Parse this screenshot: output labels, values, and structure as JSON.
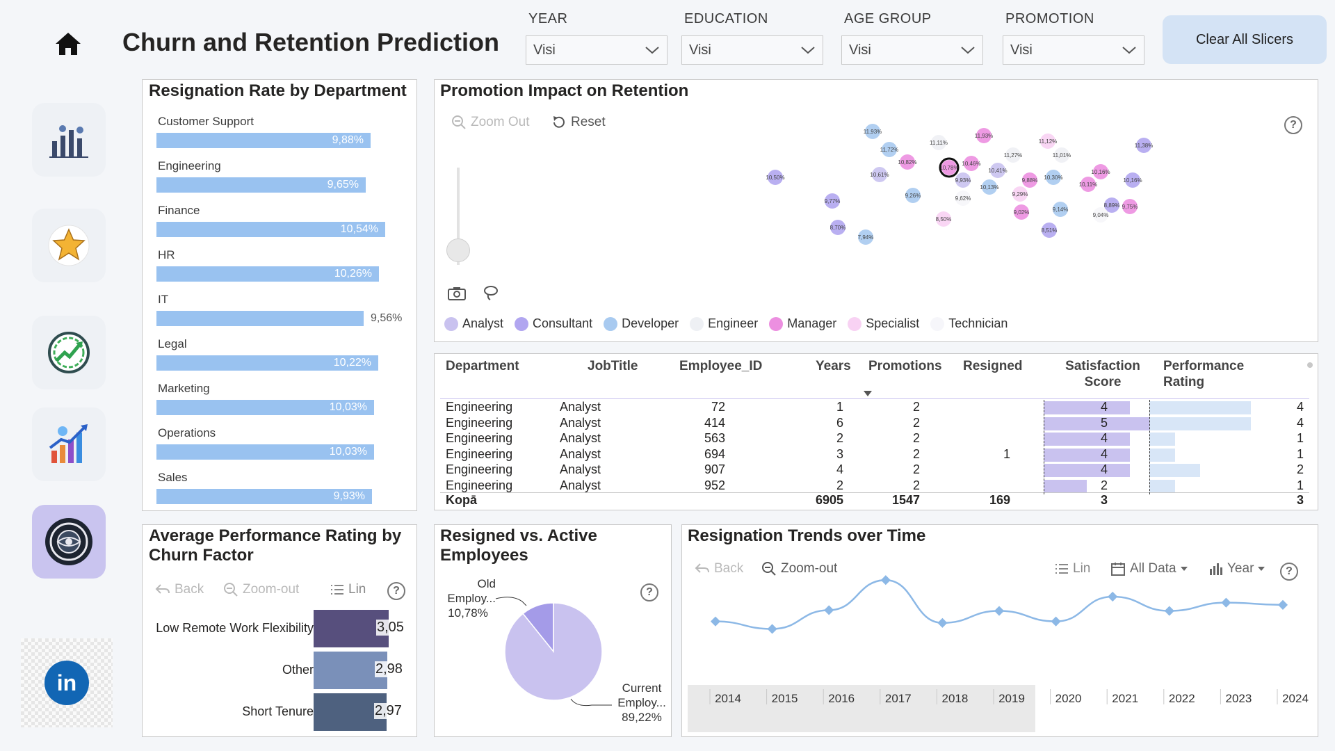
{
  "header": {
    "title": "Churn and Retention Prediction",
    "clear_button": "Clear All Slicers",
    "slicers": [
      {
        "label": "YEAR",
        "value": "Visi"
      },
      {
        "label": "EDUCATION",
        "value": "Visi"
      },
      {
        "label": "AGE GROUP",
        "value": "Visi"
      },
      {
        "label": "PROMOTION",
        "value": "Visi"
      }
    ]
  },
  "sidebar": {
    "items": [
      {
        "icon": "team-analytics-icon"
      },
      {
        "icon": "star-icon"
      },
      {
        "icon": "gauge-growth-icon"
      },
      {
        "icon": "growth-chart-icon"
      },
      {
        "icon": "globe-settings-icon",
        "active": true
      }
    ],
    "linkedin": "in"
  },
  "colors": {
    "accent": "#99c2f0",
    "active_tile": "#c9c4ef",
    "perf_bars": [
      "#574f7d",
      "#7a90b9",
      "#4e617f"
    ]
  },
  "department_panel": {
    "title": "Resignation Rate by Department",
    "chart_data": {
      "type": "bar",
      "orientation": "horizontal",
      "categories": [
        "Customer Support",
        "Engineering",
        "Finance",
        "HR",
        "IT",
        "Legal",
        "Marketing",
        "Operations",
        "Sales"
      ],
      "values": [
        9.88,
        9.65,
        10.54,
        10.26,
        9.56,
        10.22,
        10.03,
        10.03,
        9.93
      ],
      "labels": [
        "9,88%",
        "9,65%",
        "10,54%",
        "10,26%",
        "9,56%",
        "10,22%",
        "10,03%",
        "10,03%",
        "9,93%"
      ]
    }
  },
  "promo_panel": {
    "title": "Promotion Impact on Retention",
    "zoom_out": "Zoom Out",
    "reset": "Reset",
    "help": "?",
    "legend": [
      {
        "name": "Analyst",
        "color": "#c9c2ef"
      },
      {
        "name": "Consultant",
        "color": "#b1a6f0"
      },
      {
        "name": "Developer",
        "color": "#a8caf0"
      },
      {
        "name": "Engineer",
        "color": "#eef0f4"
      },
      {
        "name": "Manager",
        "color": "#ec8fe0"
      },
      {
        "name": "Specialist",
        "color": "#f8d2f3"
      },
      {
        "name": "Technician",
        "color": "#f6f6fa"
      }
    ],
    "chart_data": {
      "type": "scatter",
      "points": [
        {
          "label": "11,93%",
          "color": "#a8caf0"
        },
        {
          "label": "11,72%",
          "color": "#a8caf0"
        },
        {
          "label": "11,11%",
          "color": "#eef0f4"
        },
        {
          "label": "11,93%",
          "color": "#ec8fe0"
        },
        {
          "label": "11,12%",
          "color": "#f8d2f3"
        },
        {
          "label": "11,38%",
          "color": "#b1a6f0"
        },
        {
          "label": "11,27%",
          "color": "#eef0f4"
        },
        {
          "label": "11,01%",
          "color": "#eef0f4"
        },
        {
          "label": "10,50%",
          "color": "#b1a6f0"
        },
        {
          "label": "10,82%",
          "color": "#ec8fe0"
        },
        {
          "label": "10,78%",
          "color": "#ec8fe0"
        },
        {
          "label": "10,61%",
          "color": "#c9c2ef"
        },
        {
          "label": "10,46%",
          "color": "#ec8fe0"
        },
        {
          "label": "10,41%",
          "color": "#c9c2ef"
        },
        {
          "label": "10,30%",
          "color": "#a8caf0"
        },
        {
          "label": "10,16%",
          "color": "#ec8fe0"
        },
        {
          "label": "10,16%",
          "color": "#b1a6f0"
        },
        {
          "label": "9,93%",
          "color": "#c9c2ef"
        },
        {
          "label": "9,88%",
          "color": "#ec8fe0"
        },
        {
          "label": "10,13%",
          "color": "#a8caf0"
        },
        {
          "label": "10,11%",
          "color": "#ec8fe0"
        },
        {
          "label": "9,26%",
          "color": "#a8caf0"
        },
        {
          "label": "9,62%",
          "color": "#f6f6fa"
        },
        {
          "label": "9,29%",
          "color": "#f8d2f3"
        },
        {
          "label": "9,77%",
          "color": "#b1a6f0"
        },
        {
          "label": "9,02%",
          "color": "#ec8fe0"
        },
        {
          "label": "9,14%",
          "color": "#a8caf0"
        },
        {
          "label": "8,89%",
          "color": "#b1a6f0"
        },
        {
          "label": "9,75%",
          "color": "#ec8fe0"
        },
        {
          "label": "9,04%",
          "color": "#f6f6fa"
        },
        {
          "label": "8,50%",
          "color": "#f8d2f3"
        },
        {
          "label": "8,51%",
          "color": "#b1a6f0"
        },
        {
          "label": "8,70%",
          "color": "#b1a6f0"
        },
        {
          "label": "7,94%",
          "color": "#a8caf0"
        }
      ]
    }
  },
  "table": {
    "headers": [
      "Department",
      "JobTitle",
      "Employee_ID",
      "Years",
      "Promotions",
      "Resigned",
      "Satisfaction Score",
      "Performance Rating"
    ],
    "rows": [
      {
        "dept": "Engineering",
        "job": "Analyst",
        "id": "72",
        "years": "1",
        "promotions": "2",
        "resigned": "",
        "satisfaction": "4",
        "performance": "4",
        "sat_level": 0.8,
        "perf_level": 1.0
      },
      {
        "dept": "Engineering",
        "job": "Analyst",
        "id": "414",
        "years": "6",
        "promotions": "2",
        "resigned": "",
        "satisfaction": "5",
        "performance": "4",
        "sat_level": 1.0,
        "perf_level": 1.0
      },
      {
        "dept": "Engineering",
        "job": "Analyst",
        "id": "563",
        "years": "2",
        "promotions": "2",
        "resigned": "",
        "satisfaction": "4",
        "performance": "1",
        "sat_level": 0.8,
        "perf_level": 0.25
      },
      {
        "dept": "Engineering",
        "job": "Analyst",
        "id": "694",
        "years": "3",
        "promotions": "2",
        "resigned": "1",
        "satisfaction": "4",
        "performance": "1",
        "sat_level": 0.8,
        "perf_level": 0.25
      },
      {
        "dept": "Engineering",
        "job": "Analyst",
        "id": "907",
        "years": "4",
        "promotions": "2",
        "resigned": "",
        "satisfaction": "4",
        "performance": "2",
        "sat_level": 0.8,
        "perf_level": 0.5
      },
      {
        "dept": "Engineering",
        "job": "Analyst",
        "id": "952",
        "years": "2",
        "promotions": "2",
        "resigned": "",
        "satisfaction": "2",
        "performance": "1",
        "sat_level": 0.4,
        "perf_level": 0.25
      }
    ],
    "total": {
      "label": "Kopā",
      "years": "6905",
      "promotions": "1547",
      "resigned": "169",
      "satisfaction": "3",
      "performance": "3"
    }
  },
  "perf_panel": {
    "title": "Average Performance Rating by Churn Factor",
    "back": "Back",
    "zoom_out": "Zoom-out",
    "lin": "Lin",
    "chart_data": {
      "type": "bar",
      "orientation": "horizontal",
      "categories": [
        "Low Remote Work Flexibility",
        "Other",
        "Short Tenure"
      ],
      "values": [
        3.05,
        2.98,
        2.97
      ],
      "labels": [
        "3,05",
        "2,98",
        "2,97"
      ]
    }
  },
  "pie_panel": {
    "title": "Resigned vs. Active Employees",
    "chart_data": {
      "type": "pie",
      "slices": [
        {
          "name": "Old Employ...",
          "value": 10.78,
          "label": "10,78%",
          "color": "#a49be8"
        },
        {
          "name": "Current Employ...",
          "value": 89.22,
          "label": "89,22%",
          "color": "#c9c2ef"
        }
      ]
    }
  },
  "trend_panel": {
    "title": "Resignation Trends over Time",
    "back": "Back",
    "zoom_out": "Zoom-out",
    "lin": "Lin",
    "all_data": "All Data",
    "year": "Year",
    "chart_data": {
      "type": "line",
      "x": [
        "2014",
        "2015",
        "2016",
        "2017",
        "2018",
        "2019",
        "2020",
        "2021",
        "2022",
        "2023",
        "2024"
      ],
      "values": [
        0.42,
        0.32,
        0.57,
        0.97,
        0.4,
        0.56,
        0.42,
        0.75,
        0.56,
        0.67,
        0.64
      ],
      "ylim": [
        0,
        1
      ]
    }
  }
}
